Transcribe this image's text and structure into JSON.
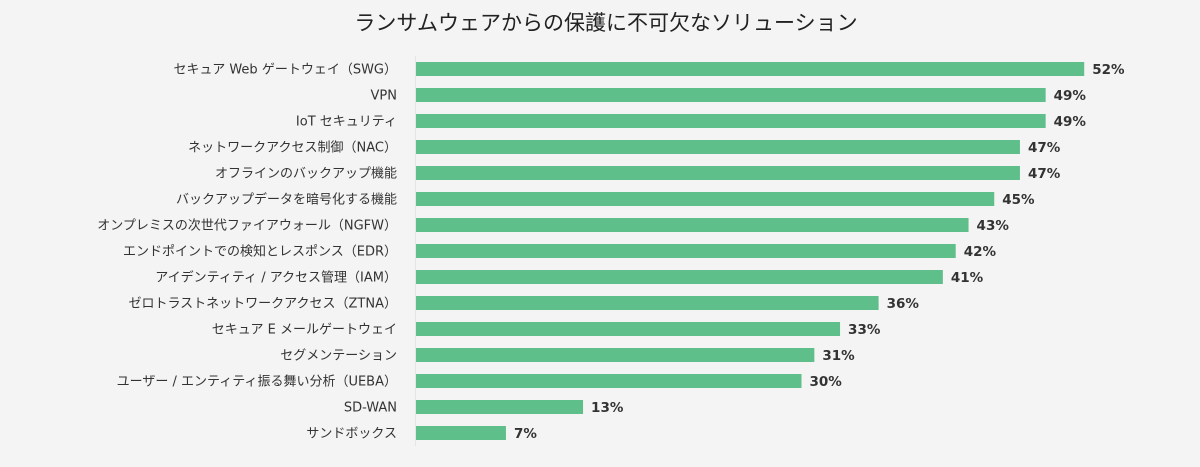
{
  "chart_data": {
    "type": "bar",
    "orientation": "horizontal",
    "title": "ランサムウェアからの保護に不可欠なソリューション",
    "xlabel": "",
    "ylabel": "",
    "xlim": [
      0,
      100
    ],
    "unit": "%",
    "bar_color": "#5fbf8b",
    "grid": false,
    "legend": "none",
    "categories": [
      "セキュア Web ゲートウェイ（SWG）",
      "VPN",
      "IoT セキュリティ",
      "ネットワークアクセス制御（NAC）",
      "オフラインのバックアップ機能",
      "バックアップデータを暗号化する機能",
      "オンプレミスの次世代ファイアウォール（NGFW）",
      "エンドポイントでの検知とレスポンス（EDR）",
      "アイデンティティ / アクセス管理（IAM）",
      "ゼロトラストネットワークアクセス（ZTNA）",
      "セキュア E メールゲートウェイ",
      "セグメンテーション",
      "ユーザー / エンティティ振る舞い分析（UEBA）",
      "SD-WAN",
      "サンドボックス"
    ],
    "values": [
      52,
      49,
      49,
      47,
      47,
      45,
      43,
      42,
      41,
      36,
      33,
      31,
      30,
      13,
      7
    ],
    "value_labels": [
      "52%",
      "49%",
      "49%",
      "47%",
      "47%",
      "45%",
      "43%",
      "42%",
      "41%",
      "36%",
      "33%",
      "31%",
      "30%",
      "13%",
      "7%"
    ]
  }
}
